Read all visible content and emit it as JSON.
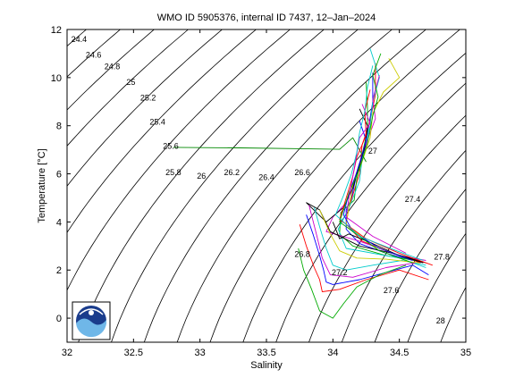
{
  "chart_data": {
    "type": "scatter",
    "title": "WMO ID 5905376, internal ID 7437, 12–Jan–2024",
    "xlabel": "Salinity",
    "ylabel": "Temperature [°C]",
    "xlim": [
      32,
      35
    ],
    "ylim": [
      -1,
      12
    ],
    "xticks": [
      32,
      32.5,
      33,
      33.5,
      34,
      34.5,
      35
    ],
    "xtick_labels": [
      "32",
      "32.5",
      "33",
      "33.5",
      "34",
      "34.5",
      "35"
    ],
    "yticks": [
      0,
      2,
      4,
      6,
      8,
      10,
      12
    ],
    "ytick_labels": [
      "0",
      "2",
      "4",
      "6",
      "8",
      "10",
      "12"
    ],
    "grid": false,
    "legend": "none",
    "isopycnal_labels": [
      {
        "text": "24.4",
        "s": 32.09,
        "t": 11.6
      },
      {
        "text": "24.6",
        "s": 32.2,
        "t": 10.95
      },
      {
        "text": "24.8",
        "s": 32.34,
        "t": 10.45
      },
      {
        "text": "25",
        "s": 32.48,
        "t": 9.8
      },
      {
        "text": "25.2",
        "s": 32.61,
        "t": 9.15
      },
      {
        "text": "25.4",
        "s": 32.68,
        "t": 8.15
      },
      {
        "text": "25.6",
        "s": 32.78,
        "t": 7.15
      },
      {
        "text": "25.8",
        "s": 32.8,
        "t": 6.05
      },
      {
        "text": "26",
        "s": 33.01,
        "t": 5.9
      },
      {
        "text": "26.2",
        "s": 33.24,
        "t": 6.05
      },
      {
        "text": "26.4",
        "s": 33.5,
        "t": 5.85
      },
      {
        "text": "26.6",
        "s": 33.77,
        "t": 6.05
      },
      {
        "text": "26.8",
        "s": 33.77,
        "t": 2.65
      },
      {
        "text": "27",
        "s": 34.3,
        "t": 6.95
      },
      {
        "text": "27.2",
        "s": 34.05,
        "t": 1.9
      },
      {
        "text": "27.4",
        "s": 34.6,
        "t": 4.95
      },
      {
        "text": "27.6",
        "s": 34.44,
        "t": 1.15
      },
      {
        "text": "27.8",
        "s": 34.82,
        "t": 2.55
      },
      {
        "text": "28",
        "s": 34.81,
        "t": -0.1
      }
    ],
    "series": [
      {
        "color": "#0000ff",
        "points": [
          [
            34.3,
            10.2
          ],
          [
            34.3,
            9.0
          ],
          [
            34.27,
            8.0
          ],
          [
            34.24,
            7.0
          ],
          [
            34.18,
            6.0
          ],
          [
            34.14,
            5.0
          ],
          [
            34.1,
            4.5
          ],
          [
            34.1,
            3.7
          ],
          [
            34.2,
            3.1
          ],
          [
            34.4,
            2.7
          ],
          [
            34.6,
            2.4
          ]
        ]
      },
      {
        "color": "#ff0000",
        "points": [
          [
            34.32,
            10.6
          ],
          [
            34.32,
            9.3
          ],
          [
            34.28,
            8.2
          ],
          [
            34.22,
            7.2
          ],
          [
            34.2,
            6.0
          ],
          [
            34.16,
            5.3
          ],
          [
            34.12,
            4.6
          ],
          [
            34.1,
            3.9
          ],
          [
            34.22,
            3.2
          ],
          [
            34.45,
            2.7
          ],
          [
            34.66,
            2.3
          ]
        ]
      },
      {
        "color": "#00aa00",
        "points": [
          [
            34.25,
            9.8
          ],
          [
            34.26,
            8.8
          ],
          [
            34.26,
            7.8
          ],
          [
            34.22,
            6.8
          ],
          [
            34.18,
            5.8
          ],
          [
            34.16,
            4.9
          ],
          [
            34.06,
            4.4
          ],
          [
            34.05,
            3.5
          ],
          [
            34.15,
            3.0
          ],
          [
            34.4,
            2.6
          ],
          [
            34.62,
            2.4
          ]
        ]
      },
      {
        "color": "#00cccc",
        "points": [
          [
            34.28,
            11.2
          ],
          [
            34.35,
            10.0
          ],
          [
            34.3,
            9.0
          ],
          [
            34.28,
            8.0
          ],
          [
            34.22,
            6.6
          ],
          [
            34.2,
            5.7
          ],
          [
            34.13,
            4.7
          ],
          [
            34.04,
            3.7
          ],
          [
            34.1,
            2.9
          ],
          [
            34.5,
            2.5
          ],
          [
            34.7,
            2.1
          ]
        ]
      },
      {
        "color": "#cc00cc",
        "points": [
          [
            34.35,
            10.1
          ],
          [
            34.3,
            9.1
          ],
          [
            34.32,
            8.3
          ],
          [
            34.26,
            7.4
          ],
          [
            34.2,
            6.4
          ],
          [
            34.15,
            5.6
          ],
          [
            34.1,
            4.8
          ],
          [
            34.0,
            4.2
          ],
          [
            33.95,
            3.6
          ],
          [
            34.2,
            3.2
          ],
          [
            34.5,
            2.6
          ],
          [
            34.7,
            2.4
          ]
        ]
      },
      {
        "color": "#cccc00",
        "points": [
          [
            34.42,
            10.8
          ],
          [
            34.5,
            10.0
          ],
          [
            34.38,
            9.4
          ],
          [
            34.3,
            8.5
          ],
          [
            34.28,
            7.5
          ],
          [
            34.22,
            6.5
          ],
          [
            34.15,
            5.5
          ],
          [
            34.12,
            4.6
          ],
          [
            34.1,
            3.9
          ],
          [
            34.3,
            3.0
          ],
          [
            34.55,
            2.5
          ]
        ]
      },
      {
        "color": "#000000",
        "points": [
          [
            34.2,
            8.7
          ],
          [
            34.26,
            8.0
          ],
          [
            34.24,
            7.1
          ],
          [
            34.2,
            6.4
          ],
          [
            34.15,
            5.4
          ],
          [
            34.08,
            4.6
          ],
          [
            33.95,
            4.0
          ],
          [
            33.8,
            4.8
          ],
          [
            33.9,
            4.5
          ],
          [
            33.98,
            3.6
          ],
          [
            34.2,
            3.0
          ],
          [
            34.45,
            2.7
          ],
          [
            34.7,
            2.3
          ]
        ]
      },
      {
        "color": "#0000ff",
        "points": [
          [
            33.8,
            4.3
          ],
          [
            33.85,
            3.5
          ],
          [
            33.9,
            2.6
          ],
          [
            33.93,
            2.0
          ],
          [
            33.95,
            1.5
          ],
          [
            34.0,
            1.4
          ],
          [
            34.2,
            1.6
          ],
          [
            34.4,
            1.9
          ],
          [
            34.6,
            2.2
          ],
          [
            34.72,
            1.8
          ]
        ]
      },
      {
        "color": "#ff0000",
        "points": [
          [
            33.75,
            3.9
          ],
          [
            33.8,
            3.0
          ],
          [
            33.86,
            2.1
          ],
          [
            33.9,
            1.6
          ],
          [
            33.92,
            1.1
          ],
          [
            34.05,
            1.2
          ],
          [
            34.25,
            1.6
          ],
          [
            34.5,
            2.0
          ],
          [
            34.72,
            1.6
          ]
        ]
      },
      {
        "color": "#00aa00",
        "points": [
          [
            33.74,
            2.9
          ],
          [
            33.78,
            2.0
          ],
          [
            33.84,
            1.2
          ],
          [
            33.9,
            0.3
          ],
          [
            34.0,
            0.0
          ],
          [
            34.08,
            0.6
          ],
          [
            34.18,
            1.3
          ],
          [
            34.35,
            1.8
          ],
          [
            34.55,
            2.2
          ]
        ]
      },
      {
        "color": "#00cccc",
        "points": [
          [
            33.86,
            4.6
          ],
          [
            33.9,
            3.8
          ],
          [
            33.95,
            2.9
          ],
          [
            34.0,
            2.2
          ],
          [
            34.1,
            2.0
          ],
          [
            34.3,
            2.2
          ],
          [
            34.52,
            2.4
          ],
          [
            34.7,
            2.2
          ]
        ]
      },
      {
        "color": "#cc00cc",
        "points": [
          [
            33.82,
            4.7
          ],
          [
            33.88,
            3.4
          ],
          [
            33.92,
            2.5
          ],
          [
            33.98,
            1.8
          ],
          [
            34.15,
            1.7
          ],
          [
            34.4,
            2.1
          ],
          [
            34.62,
            2.3
          ]
        ]
      },
      {
        "color": "#cccc00",
        "points": [
          [
            33.9,
            4.5
          ],
          [
            33.98,
            3.5
          ],
          [
            34.05,
            2.8
          ],
          [
            34.18,
            2.5
          ],
          [
            34.4,
            2.45
          ],
          [
            34.65,
            2.3
          ]
        ]
      },
      {
        "color": "#008800",
        "points": [
          [
            32.8,
            7.1
          ],
          [
            33.3,
            7.08
          ],
          [
            33.7,
            7.05
          ],
          [
            34.05,
            7.02
          ],
          [
            34.15,
            7.5
          ],
          [
            34.2,
            7.0
          ],
          [
            34.25,
            6.5
          ]
        ]
      },
      {
        "color": "#000000",
        "points": [
          [
            34.0,
            4.0
          ],
          [
            34.05,
            3.3
          ],
          [
            34.12,
            3.5
          ],
          [
            34.3,
            3.1
          ],
          [
            34.5,
            2.6
          ],
          [
            34.68,
            2.3
          ]
        ]
      },
      {
        "color": "#0000ff",
        "points": [
          [
            34.2,
            8.2
          ],
          [
            34.25,
            7.4
          ],
          [
            34.22,
            6.8
          ],
          [
            34.17,
            5.9
          ],
          [
            34.12,
            5.2
          ],
          [
            34.08,
            4.3
          ],
          [
            34.15,
            3.6
          ],
          [
            34.35,
            2.9
          ],
          [
            34.6,
            2.4
          ]
        ]
      },
      {
        "color": "#ff0000",
        "points": [
          [
            34.28,
            9.5
          ],
          [
            34.24,
            8.6
          ],
          [
            34.25,
            7.6
          ],
          [
            34.18,
            6.7
          ],
          [
            34.15,
            5.9
          ],
          [
            34.1,
            5.0
          ],
          [
            34.05,
            4.1
          ],
          [
            34.25,
            3.3
          ],
          [
            34.5,
            2.7
          ],
          [
            34.75,
            2.2
          ]
        ]
      },
      {
        "color": "#00aa00",
        "points": [
          [
            34.36,
            11.0
          ],
          [
            34.3,
            10.1
          ],
          [
            34.34,
            9.2
          ],
          [
            34.3,
            8.4
          ],
          [
            34.26,
            7.3
          ],
          [
            34.2,
            6.2
          ],
          [
            34.12,
            5.2
          ],
          [
            34.05,
            4.0
          ],
          [
            34.35,
            2.8
          ],
          [
            34.6,
            2.3
          ]
        ]
      },
      {
        "color": "#cc00cc",
        "points": [
          [
            34.22,
            8.9
          ],
          [
            34.28,
            8.1
          ],
          [
            34.2,
            7.5
          ],
          [
            34.16,
            6.2
          ],
          [
            34.12,
            5.0
          ],
          [
            34.1,
            4.2
          ],
          [
            34.3,
            3.4
          ],
          [
            34.55,
            2.7
          ]
        ]
      },
      {
        "color": "#00cccc",
        "points": [
          [
            34.3,
            10.5
          ],
          [
            34.26,
            9.6
          ],
          [
            34.24,
            8.6
          ],
          [
            34.2,
            7.7
          ],
          [
            34.18,
            6.9
          ],
          [
            34.14,
            6.0
          ],
          [
            34.08,
            5.1
          ],
          [
            34.02,
            4.3
          ],
          [
            34.2,
            3.4
          ],
          [
            34.48,
            2.8
          ],
          [
            34.68,
            2.4
          ]
        ]
      }
    ]
  }
}
